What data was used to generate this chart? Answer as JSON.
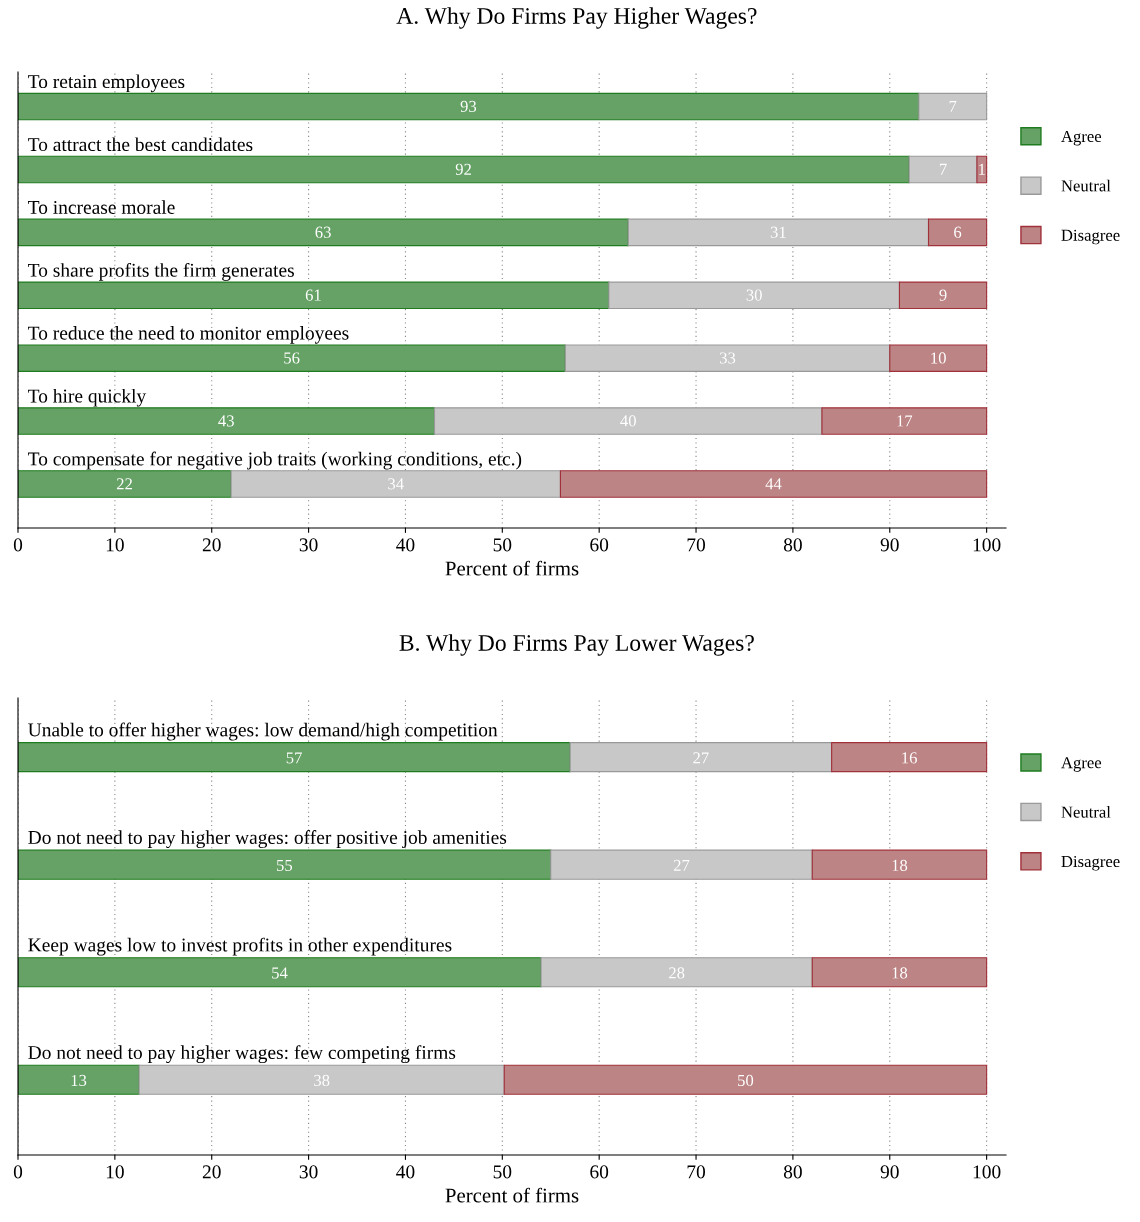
{
  "chart_data": [
    {
      "type": "bar",
      "orientation": "horizontal",
      "stacked": true,
      "title": "A. Why Do Firms Pay Higher Wages?",
      "xlabel": "Percent of firms",
      "categories": [
        "To retain employees",
        "To attract the best candidates",
        "To increase morale",
        "To share profits the firm generates",
        "To reduce the need to monitor employees",
        "To hire quickly",
        "To compensate for negative job traits (working conditions, etc.)"
      ],
      "series": [
        {
          "name": "Agree",
          "color": "#66a266",
          "values": [
            93,
            92,
            63,
            61,
            56.5,
            43,
            22
          ],
          "value_labels": [
            "93",
            "92",
            "63",
            "61",
            "56",
            "43",
            "22"
          ]
        },
        {
          "name": "Neutral",
          "color": "#c8c8c8",
          "values": [
            7,
            7,
            31,
            30,
            33.5,
            40,
            34
          ],
          "value_labels": [
            "7",
            "7",
            "31",
            "30",
            "33",
            "40",
            "34"
          ]
        },
        {
          "name": "Disagree",
          "color": "#bc8484",
          "values": [
            null,
            1,
            6,
            9,
            10,
            17,
            44
          ],
          "value_labels": [
            null,
            "1",
            "6",
            "9",
            "10",
            "17",
            "44"
          ]
        }
      ],
      "xlim": [
        0,
        102
      ],
      "xticks": [
        0,
        10,
        20,
        30,
        40,
        50,
        60,
        70,
        80,
        90,
        100
      ],
      "grid": "x",
      "legend": "right"
    },
    {
      "type": "bar",
      "orientation": "horizontal",
      "stacked": true,
      "title": "B. Why Do Firms Pay Lower Wages?",
      "xlabel": "Percent of firms",
      "categories": [
        "Unable to offer higher wages: low demand/high competition",
        "Do not need to pay higher wages: offer positive job amenities",
        "Keep wages low to invest profits in other expenditures",
        "Do not need to pay higher wages: few competing firms"
      ],
      "series": [
        {
          "name": "Agree",
          "color": "#66a266",
          "values": [
            57,
            55,
            54,
            12.5
          ],
          "value_labels": [
            "57",
            "55",
            "54",
            "13"
          ]
        },
        {
          "name": "Neutral",
          "color": "#c8c8c8",
          "values": [
            27,
            27,
            28,
            37.7
          ],
          "value_labels": [
            "27",
            "27",
            "28",
            "38"
          ]
        },
        {
          "name": "Disagree",
          "color": "#bc8484",
          "values": [
            16,
            18,
            18,
            49.8
          ],
          "value_labels": [
            "16",
            "18",
            "18",
            "50"
          ]
        }
      ],
      "xlim": [
        0,
        102
      ],
      "xticks": [
        0,
        10,
        20,
        30,
        40,
        50,
        60,
        70,
        80,
        90,
        100
      ],
      "grid": "x",
      "legend": "right"
    }
  ]
}
